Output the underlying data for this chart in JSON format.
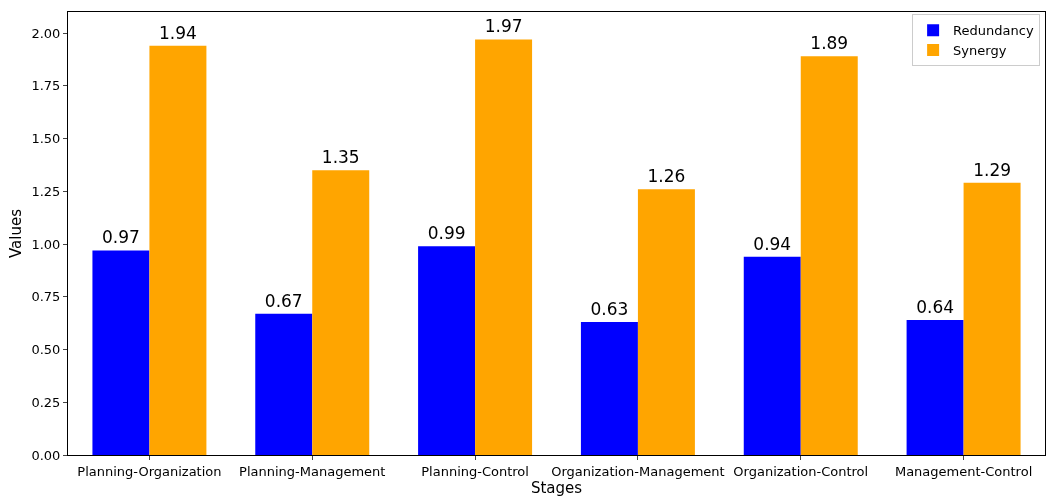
{
  "chart_data": {
    "type": "bar",
    "xlabel": "Stages",
    "ylabel": "Values",
    "categories": [
      "Planning-Organization",
      "Planning-Management",
      "Planning-Control",
      "Organization-Management",
      "Organization-Control",
      "Management-Control"
    ],
    "series": [
      {
        "name": "Redundancy",
        "color": "#0000ff",
        "values": [
          0.97,
          0.67,
          0.99,
          0.63,
          0.94,
          0.64
        ]
      },
      {
        "name": "Synergy",
        "color": "#ffa500",
        "values": [
          1.94,
          1.35,
          1.97,
          1.26,
          1.89,
          1.29
        ]
      }
    ],
    "ylim": [
      0,
      2.1
    ],
    "yticks": [
      {
        "value": 0,
        "label": "0.00"
      },
      {
        "value": 0.25,
        "label": "0.25"
      },
      {
        "value": 0.5,
        "label": "0.50"
      },
      {
        "value": 0.75,
        "label": "0.75"
      },
      {
        "value": 1,
        "label": "1.00"
      },
      {
        "value": 1.25,
        "label": "1.25"
      },
      {
        "value": 1.5,
        "label": "1.50"
      },
      {
        "value": 1.75,
        "label": "1.75"
      },
      {
        "value": 2,
        "label": "2.00"
      }
    ],
    "data_labels": true,
    "grid": false,
    "legend": "top right"
  }
}
